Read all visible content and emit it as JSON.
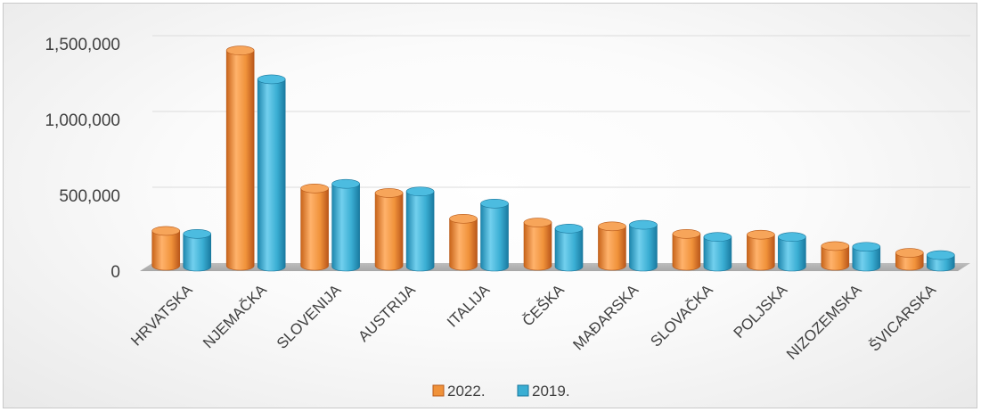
{
  "chart_data": {
    "type": "bar",
    "title": "",
    "xlabel": "",
    "ylabel": "",
    "ylim": [
      0,
      1500000
    ],
    "y_ticks": [
      "0",
      "500,000",
      "1,000,000",
      "1,500,000"
    ],
    "y_tick_values": [
      0,
      500000,
      1000000,
      1500000
    ],
    "grid": true,
    "legend_position": "bottom",
    "categories": [
      "HRVATSKA",
      "NJEMAČKA",
      "SLOVENIJA",
      "AUSTRIJA",
      "ITALIJA",
      "ČEŠKA",
      "MAĐARSKA",
      "SLOVAČKA",
      "POLJSKA",
      "NIZOZEMSKA",
      "ŠVICARSKA"
    ],
    "series": [
      {
        "name": "2022.",
        "color": "#f0923a",
        "values": [
          230000,
          1420000,
          510000,
          480000,
          310000,
          285000,
          260000,
          210000,
          205000,
          130000,
          85000
        ]
      },
      {
        "name": "2019.",
        "color": "#3aaed3",
        "values": [
          210000,
          1230000,
          540000,
          490000,
          410000,
          245000,
          270000,
          190000,
          190000,
          125000,
          70000
        ]
      }
    ]
  }
}
